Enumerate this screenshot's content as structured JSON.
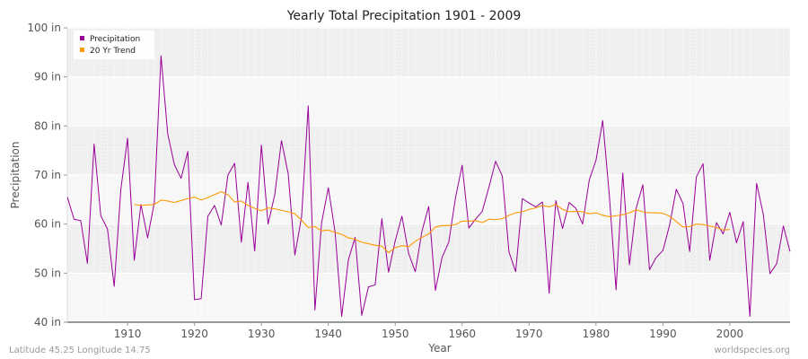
{
  "chart_data": {
    "type": "line",
    "title": "Yearly Total Precipitation 1901 - 2009",
    "xlabel": "Year",
    "ylabel": "Precipitation",
    "xlim": [
      1901,
      2009
    ],
    "ylim": [
      40,
      100
    ],
    "x_ticks": [
      1910,
      1920,
      1930,
      1940,
      1950,
      1960,
      1970,
      1980,
      1990,
      2000
    ],
    "y_ticks": [
      {
        "value": 40,
        "label": "40 in"
      },
      {
        "value": 50,
        "label": "50 in"
      },
      {
        "value": 60,
        "label": "60 in"
      },
      {
        "value": 70,
        "label": "70 in"
      },
      {
        "value": 80,
        "label": "80 in"
      },
      {
        "value": 90,
        "label": "90 in"
      },
      {
        "value": 100,
        "label": "100 in"
      }
    ],
    "grid": true,
    "legend_position": "top-left",
    "series": [
      {
        "name": "Precipitation",
        "color": "#990099",
        "x": [
          1901,
          1902,
          1903,
          1904,
          1905,
          1906,
          1907,
          1908,
          1909,
          1910,
          1911,
          1912,
          1913,
          1914,
          1915,
          1916,
          1917,
          1918,
          1919,
          1920,
          1921,
          1922,
          1923,
          1924,
          1925,
          1926,
          1927,
          1928,
          1929,
          1930,
          1931,
          1932,
          1933,
          1934,
          1935,
          1936,
          1937,
          1938,
          1939,
          1940,
          1941,
          1942,
          1943,
          1944,
          1945,
          1946,
          1947,
          1948,
          1949,
          1950,
          1951,
          1952,
          1953,
          1954,
          1955,
          1956,
          1957,
          1958,
          1959,
          1960,
          1961,
          1962,
          1963,
          1964,
          1965,
          1966,
          1967,
          1968,
          1969,
          1970,
          1971,
          1972,
          1973,
          1974,
          1975,
          1976,
          1977,
          1978,
          1979,
          1980,
          1981,
          1982,
          1983,
          1984,
          1985,
          1986,
          1987,
          1988,
          1989,
          1990,
          1991,
          1992,
          1993,
          1994,
          1995,
          1996,
          1997,
          1998,
          1999,
          2000,
          2001,
          2002,
          2003,
          2004,
          2005,
          2006,
          2007,
          2008,
          2009
        ],
        "y": [
          65.5,
          61,
          60.7,
          52,
          76.3,
          61.7,
          59,
          47.3,
          67.1,
          77.5,
          52.6,
          64,
          57.2,
          64.4,
          94.3,
          78.4,
          72.1,
          69.3,
          74.8,
          44.6,
          44.8,
          61.6,
          63.8,
          59.8,
          70,
          72.4,
          56.3,
          68.5,
          54.5,
          76.1,
          60,
          66,
          77,
          70.3,
          53.7,
          61.4,
          84.1,
          42.5,
          60.3,
          67.4,
          58.5,
          41.2,
          52.7,
          57.3,
          41.4,
          47.2,
          47.6,
          61.1,
          50.2,
          56.6,
          61.6,
          54,
          50.3,
          58.6,
          63.6,
          46.5,
          53.2,
          56.3,
          65.3,
          72,
          59.2,
          61,
          62.6,
          67.5,
          72.8,
          69.8,
          54.3,
          50.3,
          65.2,
          64.3,
          63.5,
          64.5,
          45.9,
          64.8,
          59.1,
          64.4,
          63.2,
          60,
          69,
          73,
          81.1,
          65.8,
          46.6,
          70.4,
          51.7,
          63.2,
          68,
          50.7,
          53.2,
          54.6,
          59.8,
          67.1,
          64.2,
          54.4,
          69.6,
          72.3,
          52.6,
          60.3,
          58,
          62.4,
          56.2,
          60.5,
          41.2,
          68.3,
          62,
          49.9,
          51.9,
          59.6,
          54.4
        ]
      },
      {
        "name": "20 Yr Trend",
        "color": "#ff9900",
        "x": [
          1911,
          1912,
          1913,
          1914,
          1915,
          1916,
          1917,
          1918,
          1919,
          1920,
          1921,
          1922,
          1923,
          1924,
          1925,
          1926,
          1927,
          1928,
          1929,
          1930,
          1931,
          1932,
          1933,
          1934,
          1935,
          1936,
          1937,
          1938,
          1939,
          1940,
          1941,
          1942,
          1943,
          1944,
          1945,
          1946,
          1947,
          1948,
          1949,
          1950,
          1951,
          1952,
          1953,
          1954,
          1955,
          1956,
          1957,
          1958,
          1959,
          1960,
          1961,
          1962,
          1963,
          1964,
          1965,
          1966,
          1967,
          1968,
          1969,
          1970,
          1971,
          1972,
          1973,
          1974,
          1975,
          1976,
          1977,
          1978,
          1979,
          1980,
          1981,
          1982,
          1983,
          1984,
          1985,
          1986,
          1987,
          1988,
          1989,
          1990,
          1991,
          1992,
          1993,
          1994,
          1995,
          1996,
          1997,
          1998,
          1999,
          2000
        ],
        "y": [
          64,
          63.8,
          63.9,
          64,
          64.9,
          64.7,
          64.4,
          64.8,
          65.2,
          65.5,
          64.9,
          65.4,
          66,
          66.6,
          66,
          64.5,
          64.7,
          63.8,
          63.2,
          62.7,
          63.3,
          63.1,
          62.8,
          62.5,
          62.1,
          60.8,
          59.3,
          59.5,
          58.6,
          58.8,
          58.3,
          57.9,
          57.2,
          56.9,
          56.3,
          56,
          55.7,
          55.5,
          54.2,
          55.2,
          55.6,
          55.4,
          56.5,
          57.3,
          58,
          59.4,
          59.7,
          59.7,
          59.9,
          60.6,
          60.6,
          60.7,
          60.3,
          61,
          60.9,
          61.1,
          61.8,
          62.3,
          62.5,
          63,
          63.3,
          63.8,
          63.5,
          64,
          63,
          62.5,
          62.6,
          62.5,
          62.1,
          62.3,
          61.8,
          61.5,
          61.7,
          61.9,
          62.3,
          62.9,
          62.5,
          62.3,
          62.3,
          62.2,
          61.6,
          60.5,
          59.4,
          59.5,
          60,
          59.9,
          59.6,
          59.3,
          58.8,
          58.9
        ]
      }
    ],
    "footer_left": "Latitude 45.25 Longitude 14.75",
    "footer_right": "worldspecies.org"
  }
}
